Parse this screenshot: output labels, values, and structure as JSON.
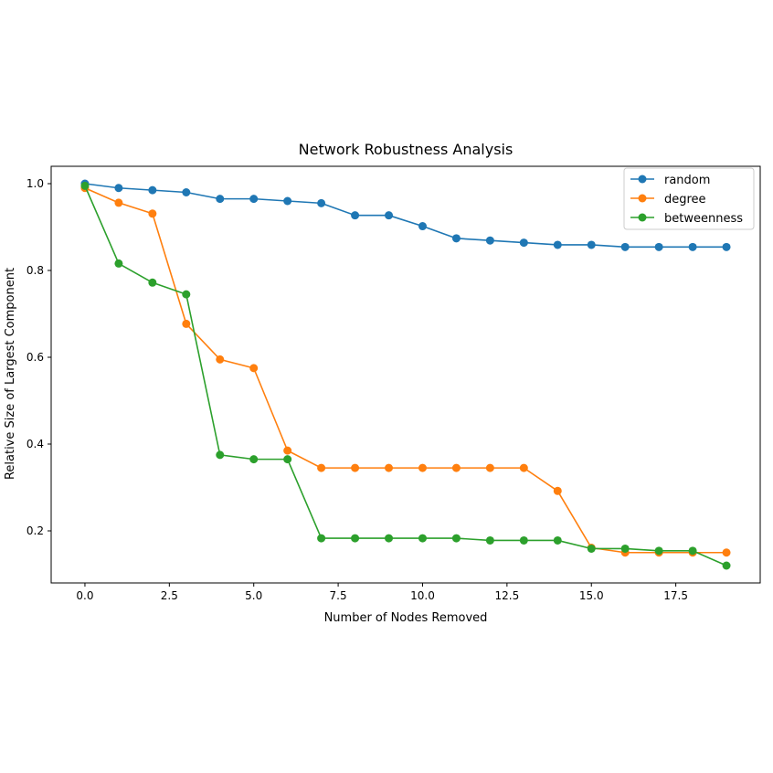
{
  "chart_data": {
    "type": "line",
    "title": "Network Robustness Analysis",
    "xlabel": "Number of Nodes Removed",
    "ylabel": "Relative Size of Largest Component",
    "xlim": [
      -1,
      20
    ],
    "ylim": [
      0.08,
      1.04
    ],
    "xticks": [
      0.0,
      2.5,
      5.0,
      7.5,
      10.0,
      12.5,
      15.0,
      17.5
    ],
    "xtick_labels": [
      "0.0",
      "2.5",
      "5.0",
      "7.5",
      "10.0",
      "12.5",
      "15.0",
      "17.5"
    ],
    "yticks": [
      0.2,
      0.4,
      0.6,
      0.8,
      1.0
    ],
    "ytick_labels": [
      "0.2",
      "0.4",
      "0.6",
      "0.8",
      "1.0"
    ],
    "grid": false,
    "legend_position": "top-right",
    "x": [
      0,
      1,
      2,
      3,
      4,
      5,
      6,
      7,
      8,
      9,
      10,
      11,
      12,
      13,
      14,
      15,
      16,
      17,
      18,
      19
    ],
    "series": [
      {
        "name": "random",
        "color": "#1f77b4",
        "values": [
          1.0,
          0.99,
          0.985,
          0.98,
          0.965,
          0.965,
          0.96,
          0.955,
          0.927,
          0.927,
          0.902,
          0.874,
          0.869,
          0.864,
          0.859,
          0.859,
          0.854,
          0.854,
          0.854,
          0.854
        ]
      },
      {
        "name": "degree",
        "color": "#ff7f0e",
        "values": [
          0.99,
          0.956,
          0.931,
          0.677,
          0.595,
          0.575,
          0.385,
          0.345,
          0.345,
          0.345,
          0.345,
          0.345,
          0.345,
          0.345,
          0.292,
          0.161,
          0.15,
          0.15,
          0.15,
          0.15
        ]
      },
      {
        "name": "betweenness",
        "color": "#2ca02c",
        "values": [
          0.995,
          0.816,
          0.772,
          0.745,
          0.375,
          0.365,
          0.365,
          0.183,
          0.183,
          0.183,
          0.183,
          0.183,
          0.178,
          0.178,
          0.178,
          0.159,
          0.159,
          0.154,
          0.154,
          0.12
        ]
      }
    ]
  }
}
